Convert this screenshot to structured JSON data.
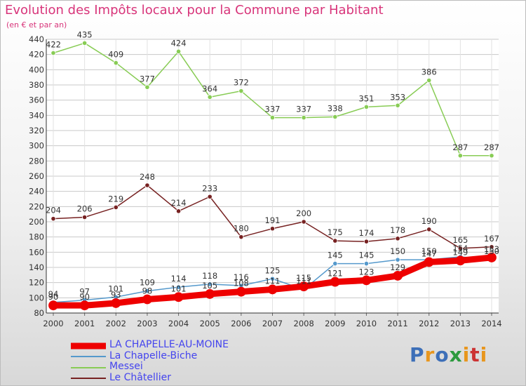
{
  "title": "Evolution des Impôts locaux pour la Commune par Habitant",
  "subtitle": "(en € et par an)",
  "logo": "Proxiti",
  "colors": {
    "title": "#d8347a",
    "grid": "#c8c8c8",
    "axis": "#333333",
    "logo": [
      "#3d6fb8",
      "#e8961e",
      "#3d6fb8",
      "#2c9a3e",
      "#e8961e",
      "#cc3333",
      "#e8961e"
    ]
  },
  "chart_data": {
    "type": "line",
    "title": "Evolution des Impôts locaux pour la Commune par Habitant",
    "subtitle": "(en € et par an)",
    "xlabel": "",
    "ylabel": "",
    "x": [
      "2000",
      "2001",
      "2002",
      "2003",
      "2004",
      "2005",
      "2006",
      "2007",
      "2008",
      "2009",
      "2010",
      "2011",
      "2012",
      "2013",
      "2014"
    ],
    "ylim": [
      80,
      440
    ],
    "yticks": [
      80,
      100,
      120,
      140,
      160,
      180,
      200,
      220,
      240,
      260,
      280,
      300,
      320,
      340,
      360,
      380,
      400,
      420,
      440
    ],
    "grid": true,
    "legend": "bottom-left",
    "series": [
      {
        "name": "LA CHAPELLE-AU-MOINE",
        "color": "#ee0000",
        "width": 9,
        "values": [
          90,
          90,
          93,
          98,
          101,
          105,
          108,
          111,
          115,
          121,
          123,
          129,
          147,
          149,
          153
        ],
        "labels": [
          "90",
          "90",
          "93",
          "98",
          "101",
          "105",
          "108",
          "111",
          "115",
          "121",
          "123",
          "129",
          "147",
          "149",
          "153"
        ]
      },
      {
        "name": "La Chapelle-Biche",
        "color": "#5599cc",
        "width": 1.5,
        "values": [
          94,
          97,
          101,
          109,
          114,
          118,
          116,
          125,
          111,
          145,
          145,
          150,
          150,
          154,
          150
        ],
        "labels": [
          "94",
          "97",
          "101",
          "109",
          "114",
          "118",
          "116",
          "125",
          "111",
          "145",
          "145",
          "150",
          "150",
          "154",
          "150"
        ]
      },
      {
        "name": "Messei",
        "color": "#88cc55",
        "width": 1.5,
        "values": [
          422,
          435,
          409,
          377,
          424,
          364,
          372,
          337,
          337,
          338,
          351,
          353,
          386,
          287,
          287
        ],
        "labels": [
          "422",
          "435",
          "409",
          "377",
          "424",
          "364",
          "372",
          "337",
          "337",
          "338",
          "351",
          "353",
          "386",
          "287",
          "287"
        ]
      },
      {
        "name": "Le Châtellier",
        "color": "#772222",
        "width": 1.5,
        "values": [
          204,
          206,
          219,
          248,
          214,
          233,
          180,
          191,
          200,
          175,
          174,
          178,
          190,
          165,
          167
        ],
        "labels": [
          "204",
          "206",
          "219",
          "248",
          "214",
          "233",
          "180",
          "191",
          "200",
          "175",
          "174",
          "178",
          "190",
          "165",
          "167"
        ]
      }
    ]
  }
}
